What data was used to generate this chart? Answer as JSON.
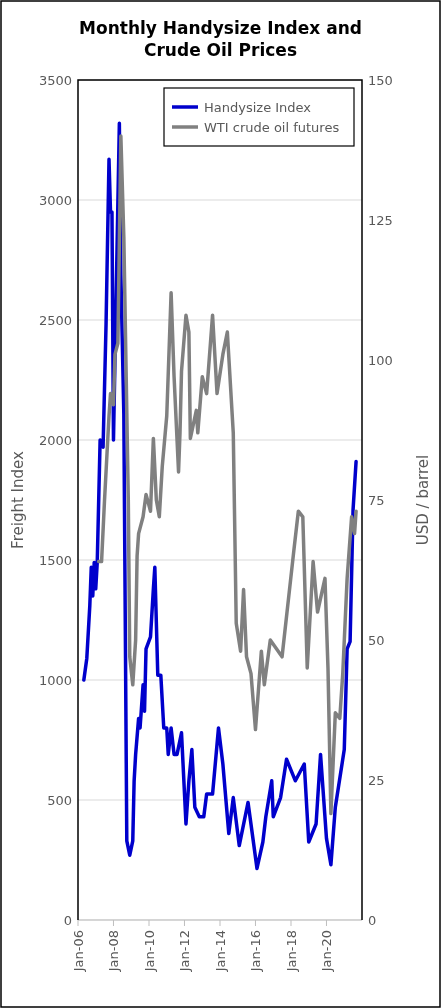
{
  "chart_data": {
    "type": "line",
    "title": "Monthly Handysize Index and Crude Oil Prices",
    "ylabel": "Freight Index",
    "y2label": "USD / barrel",
    "xlim": [
      "2006-01",
      "2022-01"
    ],
    "xticks": [
      {
        "value": "2006-01",
        "label": "Jan-06"
      },
      {
        "value": "2008-01",
        "label": "Jan-08"
      },
      {
        "value": "2010-01",
        "label": "Jan-10"
      },
      {
        "value": "2012-01",
        "label": "Jan-12"
      },
      {
        "value": "2014-01",
        "label": "Jan-14"
      },
      {
        "value": "2016-01",
        "label": "Jan-16"
      },
      {
        "value": "2018-01",
        "label": "Jan-18"
      },
      {
        "value": "2020-01",
        "label": "Jan-20"
      }
    ],
    "ylim": [
      0,
      3500
    ],
    "yticks": [
      0,
      500,
      1000,
      1500,
      2000,
      2500,
      3000,
      3500
    ],
    "y2lim": [
      0,
      150
    ],
    "y2ticks": [
      0,
      25,
      50,
      75,
      100,
      125,
      150
    ],
    "grid": "y",
    "legend": "top right",
    "line_style": "solid",
    "marker": "none",
    "series": [
      {
        "name": "Handysize Index",
        "color": "#0000cc",
        "x": [
          "2006-05",
          "2006-07",
          "2006-09",
          "2006-10",
          "2006-11",
          "2006-12",
          "2007-01",
          "2007-02",
          "2007-04",
          "2007-06",
          "2007-08",
          "2007-10",
          "2007-11",
          "2007-12",
          "2008-01",
          "2008-05",
          "2008-06",
          "2008-08",
          "2008-10",
          "2008-12",
          "2009-02",
          "2009-03",
          "2009-04",
          "2009-06",
          "2009-07",
          "2009-09",
          "2009-10",
          "2009-11",
          "2010-02",
          "2010-04",
          "2010-05",
          "2010-07",
          "2010-09",
          "2010-11",
          "2011-01",
          "2011-02",
          "2011-04",
          "2011-06",
          "2011-08",
          "2011-11",
          "2012-02",
          "2012-04",
          "2012-06",
          "2012-08",
          "2012-11",
          "2013-02",
          "2013-04",
          "2013-08",
          "2013-12",
          "2014-03",
          "2014-07",
          "2014-10",
          "2015-02",
          "2015-08",
          "2016-02",
          "2016-06",
          "2016-08",
          "2016-12",
          "2017-01",
          "2017-06",
          "2017-10",
          "2018-04",
          "2018-10",
          "2019-01",
          "2019-06",
          "2019-09",
          "2020-01",
          "2020-04",
          "2020-07",
          "2021-01",
          "2021-03",
          "2021-05",
          "2021-07",
          "2021-09"
        ],
        "values": [
          1000,
          1090,
          1310,
          1470,
          1350,
          1490,
          1380,
          1490,
          2000,
          1970,
          2480,
          3170,
          2950,
          2950,
          2000,
          3320,
          2690,
          2110,
          330,
          270,
          330,
          580,
          690,
          840,
          800,
          980,
          870,
          1130,
          1180,
          1380,
          1470,
          1020,
          1020,
          800,
          800,
          690,
          800,
          690,
          690,
          780,
          400,
          580,
          710,
          470,
          430,
          430,
          525,
          525,
          800,
          650,
          360,
          510,
          310,
          490,
          215,
          325,
          430,
          580,
          430,
          510,
          670,
          580,
          650,
          325,
          400,
          690,
          340,
          230,
          470,
          710,
          1130,
          1160,
          1710,
          1910
        ]
      },
      {
        "name": "WTI crude oil futures",
        "color": "#808080",
        "axis": "y2",
        "x": [
          "2007-03",
          "2007-05",
          "2007-07",
          "2007-10",
          "2007-11",
          "2008-01",
          "2008-02",
          "2008-04",
          "2008-06",
          "2008-08",
          "2008-11",
          "2008-12",
          "2009-02",
          "2009-04",
          "2009-05",
          "2009-06",
          "2009-09",
          "2009-11",
          "2010-02",
          "2010-04",
          "2010-06",
          "2010-08",
          "2010-10",
          "2011-01",
          "2011-04",
          "2011-06",
          "2011-09",
          "2011-10",
          "2011-11",
          "2012-02",
          "2012-04",
          "2012-05",
          "2012-09",
          "2012-10",
          "2013-01",
          "2013-04",
          "2013-08",
          "2013-11",
          "2014-03",
          "2014-06",
          "2014-10",
          "2014-12",
          "2015-03",
          "2015-05",
          "2015-07",
          "2015-10",
          "2016-01",
          "2016-05",
          "2016-07",
          "2016-11",
          "2017-07",
          "2018-03",
          "2018-06",
          "2018-09",
          "2018-12",
          "2019-04",
          "2019-07",
          "2019-12",
          "2020-02",
          "2020-04",
          "2020-07",
          "2020-10",
          "2020-12",
          "2021-03",
          "2021-06",
          "2021-08",
          "2021-09"
        ],
        "values": [
          64,
          64,
          75,
          90,
          94,
          92,
          101,
          103,
          140,
          122,
          75,
          47,
          42,
          50,
          65,
          69,
          72,
          76,
          73,
          86,
          75,
          72,
          81,
          90,
          112,
          97,
          80,
          87,
          98,
          108,
          105,
          86,
          91,
          87,
          97,
          94,
          108,
          94,
          101,
          105,
          87,
          53,
          48,
          59,
          47,
          44,
          34,
          48,
          42,
          50,
          47,
          66,
          73,
          72,
          45,
          64,
          55,
          61,
          45,
          19,
          37,
          36,
          44,
          61,
          72,
          69,
          73
        ]
      }
    ]
  }
}
